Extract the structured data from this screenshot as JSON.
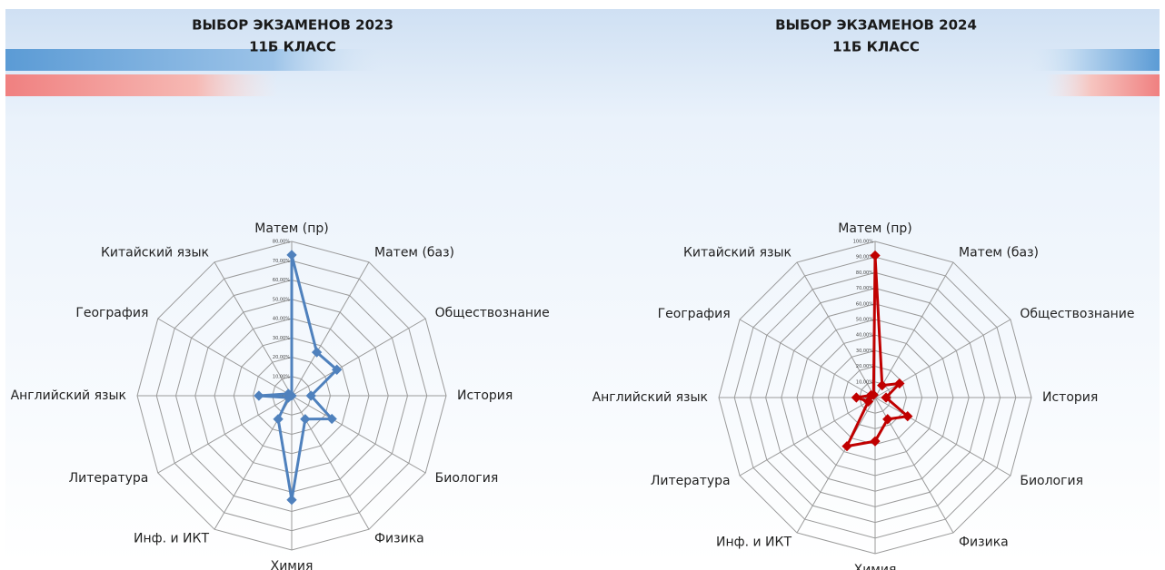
{
  "chart_data": [
    {
      "type": "radar",
      "title": "ВЫБОР ЭКЗАМЕНОВ 2023",
      "subtitle": "11Б КЛАСС",
      "categories": [
        "Матем (пр)",
        "Матем (баз)",
        "Обществознание",
        "История",
        "Биология",
        "Физика",
        "Химия",
        "Инф. и ИКТ",
        "Литература",
        "Английский язык",
        "География",
        "Китайский язык"
      ],
      "values": [
        73,
        26,
        27,
        10,
        24,
        14,
        54,
        14,
        2,
        17,
        2,
        0
      ],
      "color": "#4f81bd",
      "ylim": [
        0,
        80
      ],
      "yticks": [
        {
          "value": 0,
          "label": "0,00%"
        },
        {
          "value": 10,
          "label": "10,00%"
        },
        {
          "value": 20,
          "label": "20,00%"
        },
        {
          "value": 30,
          "label": "30,00%"
        },
        {
          "value": 40,
          "label": "40,00%"
        },
        {
          "value": 50,
          "label": "50,00%"
        },
        {
          "value": 60,
          "label": "60,00%"
        },
        {
          "value": 70,
          "label": "70,00%"
        },
        {
          "value": 80,
          "label": "80,00%"
        }
      ],
      "grid": true
    },
    {
      "type": "radar",
      "title": "ВЫБОР ЭКЗАМЕНОВ 2024",
      "subtitle": "11Б КЛАСС",
      "categories": [
        "Матем (пр)",
        "Матем (баз)",
        "Обществознание",
        "История",
        "Биология",
        "Физика",
        "Химия",
        "Инф. и ИКТ",
        "Литература",
        "Английский язык",
        "География",
        "Китайский язык"
      ],
      "values": [
        91,
        9,
        18,
        7,
        24,
        16,
        28,
        36,
        5,
        12,
        3,
        2
      ],
      "color": "#c00000",
      "ylim": [
        0,
        100
      ],
      "yticks": [
        {
          "value": 0,
          "label": "0,00%"
        },
        {
          "value": 10,
          "label": "10,00%"
        },
        {
          "value": 20,
          "label": "20,00%"
        },
        {
          "value": 30,
          "label": "30,00%"
        },
        {
          "value": 40,
          "label": "40,00%"
        },
        {
          "value": 50,
          "label": "50,00%"
        },
        {
          "value": 60,
          "label": "60,00%"
        },
        {
          "value": 70,
          "label": "70,00%"
        },
        {
          "value": 80,
          "label": "80,00%"
        },
        {
          "value": 90,
          "label": "90,00%"
        },
        {
          "value": 100,
          "label": "100,00%"
        }
      ],
      "grid": true
    }
  ]
}
